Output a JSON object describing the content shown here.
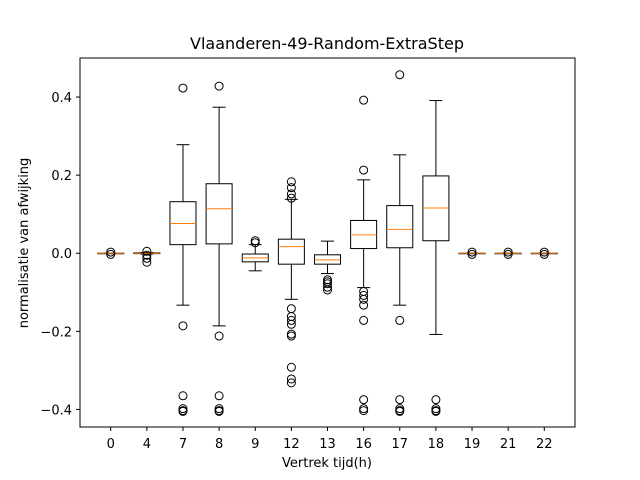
{
  "chart_data": {
    "type": "boxplot",
    "title": "Vlaanderen-49-Random-ExtraStep",
    "xlabel": "Vertrek tijd(h)",
    "ylabel": "normalisatie van afwijking",
    "ylim": [
      -0.445,
      0.5
    ],
    "yticks": [
      -0.4,
      -0.2,
      0.0,
      0.2,
      0.4
    ],
    "ytick_labels": [
      "−0.4",
      "−0.2",
      "0.0",
      "0.2",
      "0.4"
    ],
    "grid": false,
    "colors": {
      "box": "#000000",
      "median": "#ff7f0e",
      "flier": "#000000"
    },
    "categories": [
      "0",
      "4",
      "7",
      "8",
      "9",
      "12",
      "13",
      "16",
      "17",
      "18",
      "19",
      "21",
      "22"
    ],
    "boxes": [
      {
        "label": "0",
        "whislo": 0.0,
        "q1": 0.0,
        "med": 0.0,
        "q3": 0.0,
        "whishi": 0.0,
        "fliers": [
          0.003,
          -0.003
        ]
      },
      {
        "label": "4",
        "whislo": -0.002,
        "q1": -0.001,
        "med": 0.0,
        "q3": 0.001,
        "whishi": 0.002,
        "fliers": [
          0.005,
          -0.005,
          -0.013,
          -0.023
        ]
      },
      {
        "label": "7",
        "whislo": -0.133,
        "q1": 0.022,
        "med": 0.076,
        "q3": 0.132,
        "whishi": 0.278,
        "fliers": [
          0.423,
          -0.186,
          -0.365,
          -0.398,
          -0.403,
          -0.405
        ]
      },
      {
        "label": "8",
        "whislo": -0.186,
        "q1": 0.024,
        "med": 0.114,
        "q3": 0.178,
        "whishi": 0.374,
        "fliers": [
          0.428,
          -0.212,
          -0.365,
          -0.398,
          -0.403,
          -0.405
        ]
      },
      {
        "label": "9",
        "whislo": -0.045,
        "q1": -0.022,
        "med": -0.012,
        "q3": -0.002,
        "whishi": 0.022,
        "fliers": [
          0.027,
          0.032
        ]
      },
      {
        "label": "12",
        "whislo": -0.118,
        "q1": -0.028,
        "med": 0.017,
        "q3": 0.036,
        "whishi": 0.138,
        "fliers": [
          0.183,
          0.168,
          0.152,
          0.141,
          -0.142,
          -0.162,
          -0.172,
          -0.182,
          -0.207,
          -0.212,
          -0.292,
          -0.322,
          -0.332
        ]
      },
      {
        "label": "13",
        "whislo": -0.052,
        "q1": -0.028,
        "med": -0.017,
        "q3": -0.004,
        "whishi": 0.031,
        "fliers": [
          -0.068,
          -0.073,
          -0.078,
          -0.087,
          -0.094
        ]
      },
      {
        "label": "16",
        "whislo": -0.088,
        "q1": 0.012,
        "med": 0.047,
        "q3": 0.084,
        "whishi": 0.188,
        "fliers": [
          0.392,
          0.213,
          -0.098,
          -0.108,
          -0.118,
          -0.133,
          -0.172,
          -0.375,
          -0.398,
          -0.403
        ]
      },
      {
        "label": "17",
        "whislo": -0.133,
        "q1": 0.014,
        "med": 0.061,
        "q3": 0.122,
        "whishi": 0.252,
        "fliers": [
          0.457,
          -0.172,
          -0.375,
          -0.398,
          -0.403,
          -0.405
        ]
      },
      {
        "label": "18",
        "whislo": -0.208,
        "q1": 0.032,
        "med": 0.116,
        "q3": 0.198,
        "whishi": 0.391,
        "fliers": [
          -0.375,
          -0.398,
          -0.403,
          -0.405
        ]
      },
      {
        "label": "19",
        "whislo": 0.0,
        "q1": 0.0,
        "med": 0.0,
        "q3": 0.0,
        "whishi": 0.0,
        "fliers": [
          0.003,
          -0.003
        ]
      },
      {
        "label": "21",
        "whislo": 0.0,
        "q1": 0.0,
        "med": 0.0,
        "q3": 0.0,
        "whishi": 0.0,
        "fliers": [
          0.003,
          -0.003
        ]
      },
      {
        "label": "22",
        "whislo": 0.0,
        "q1": 0.0,
        "med": 0.0,
        "q3": 0.0,
        "whishi": 0.0,
        "fliers": [
          0.003,
          -0.003
        ]
      }
    ]
  }
}
